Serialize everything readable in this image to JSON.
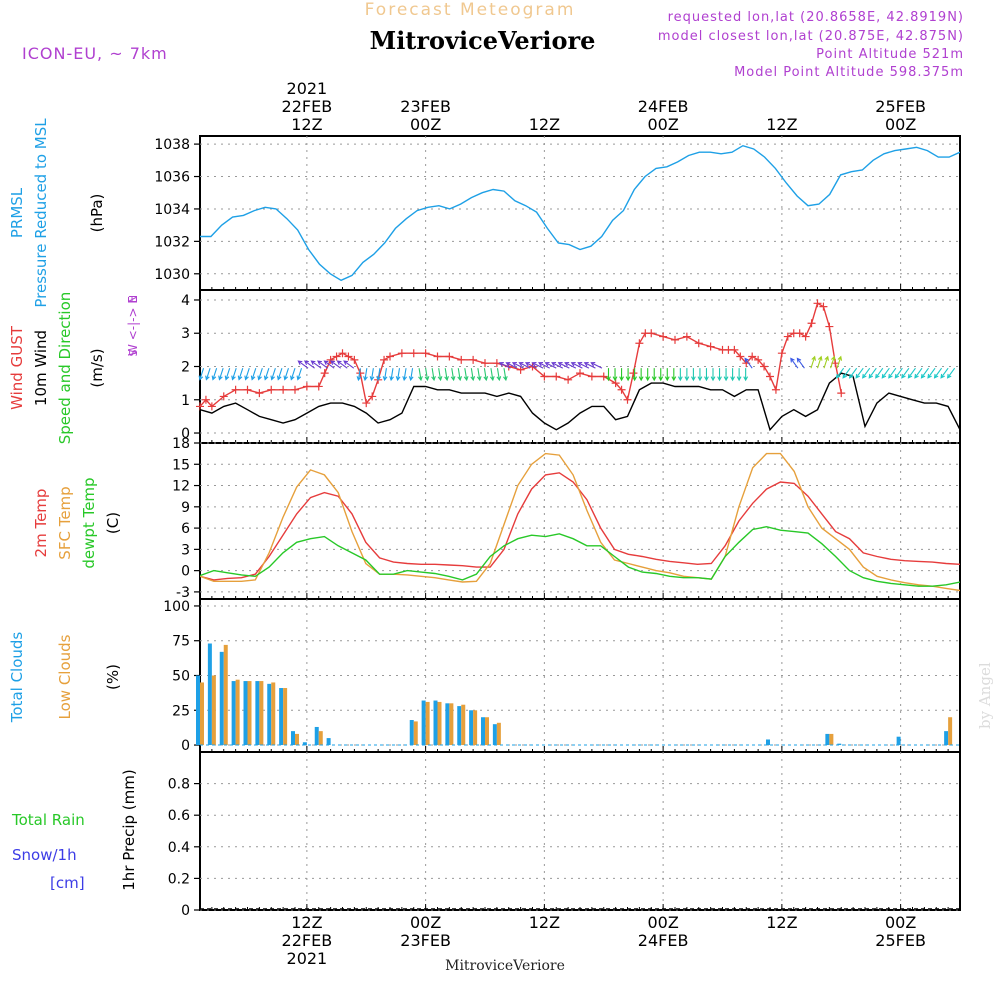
{
  "header": {
    "title": "Forecast Meteogram",
    "station": "MitroviceVeriore",
    "model": "ICON-EU, ~ 7km",
    "info": [
      "requested lon,lat (20.8658E, 42.8919N)",
      "model closest lon,lat (20.875E, 42.875N)",
      "Point Altitude 521m",
      "Model Point Altitude 598.375m"
    ]
  },
  "credit": "by Angel",
  "colors": {
    "pressure": "#1ea0e6",
    "gust": "#e63c3c",
    "wind": "#000000",
    "direction": "#28c828",
    "temp2m": "#e63c3c",
    "sfc": "#e6a03c",
    "dewpt": "#28c828",
    "total_clouds": "#1ea0e6",
    "low_clouds": "#e6a03c",
    "rain": "#28c828",
    "snow": "#3c3ce6",
    "compass": "#b040d0"
  },
  "time_axis": {
    "x_min": 0,
    "x_max": 64,
    "major": [
      {
        "t": 9,
        "top": [
          "2021",
          "22FEB",
          "12Z"
        ],
        "bottom": [
          "12Z",
          "22FEB",
          "2021"
        ]
      },
      {
        "t": 19,
        "top": [
          "23FEB",
          "00Z"
        ],
        "bottom": [
          "00Z",
          "23FEB"
        ]
      },
      {
        "t": 29,
        "top": [
          "12Z"
        ],
        "bottom": [
          "12Z"
        ]
      },
      {
        "t": 39,
        "top": [
          "24FEB",
          "00Z"
        ],
        "bottom": [
          "00Z",
          "24FEB"
        ]
      },
      {
        "t": 49,
        "top": [
          "12Z"
        ],
        "bottom": [
          "12Z"
        ]
      },
      {
        "t": 59,
        "top": [
          "25FEB",
          "00Z"
        ],
        "bottom": [
          "00Z",
          "25FEB"
        ]
      }
    ]
  },
  "panel_labels": {
    "pressure": {
      "lines": [
        "PRMSL",
        "Pressure Reduced to MSL"
      ],
      "unit": "(hPa)"
    },
    "wind": {
      "lines": [
        "Wind GUST",
        "10m Wind",
        "Speed and Direction"
      ],
      "unit": "(m/s)",
      "compass": [
        "N",
        "W <-|-> E",
        "S"
      ]
    },
    "temp": {
      "lines": [
        "2m Temp",
        "SFC Temp",
        "dewpt Temp"
      ],
      "unit": "(C)"
    },
    "clouds": {
      "lines": [
        "Total Clouds",
        "Low Clouds"
      ],
      "unit": "(%)"
    },
    "precip": {
      "lines": [
        "Total   Rain",
        "Snow/1h",
        "[cm]"
      ],
      "unit": "1hr Precip (mm)"
    }
  },
  "chart_data": [
    {
      "type": "line",
      "name": "pressure",
      "ylim": [
        1029,
        1038.5
      ],
      "yticks": [
        1030,
        1032,
        1034,
        1036,
        1038
      ],
      "series": [
        {
          "name": "PRMSL",
          "values": [
            1032.3,
            1032.3,
            1033.0,
            1033.5,
            1033.6,
            1033.9,
            1034.1,
            1034.0,
            1033.4,
            1032.7,
            1031.5,
            1030.6,
            1030.0,
            1029.6,
            1029.9,
            1030.7,
            1031.2,
            1031.9,
            1032.8,
            1033.4,
            1033.9,
            1034.1,
            1034.2,
            1034.0,
            1034.3,
            1034.7,
            1035.0,
            1035.2,
            1035.1,
            1034.5,
            1034.2,
            1033.8,
            1032.8,
            1031.9,
            1031.8,
            1031.5,
            1031.7,
            1032.3,
            1033.3,
            1033.9,
            1035.2,
            1036.0,
            1036.5,
            1036.6,
            1036.9,
            1037.3,
            1037.5,
            1037.5,
            1037.4,
            1037.5,
            1037.9,
            1037.7,
            1037.2,
            1036.5,
            1035.6,
            1034.8,
            1034.2,
            1034.3,
            1034.9,
            1036.1,
            1036.3,
            1036.4,
            1037.0,
            1037.4,
            1037.6,
            1037.7,
            1037.8,
            1037.6,
            1037.2,
            1037.2,
            1037.5
          ]
        }
      ]
    },
    {
      "type": "line",
      "name": "wind",
      "ylim": [
        -0.3,
        4.3
      ],
      "yticks": [
        0,
        1,
        2,
        3,
        4
      ],
      "series": [
        {
          "name": "Wind GUST",
          "values": [
            0.8,
            1.0,
            0.8,
            1.1,
            1.3,
            1.3,
            1.2,
            1.3,
            1.3,
            1.3,
            1.4,
            1.4,
            1.8,
            2.2,
            2.3,
            2.4,
            2.3,
            2.2,
            1.8,
            0.9,
            1.1,
            1.6,
            2.2,
            2.3,
            2.4,
            2.4,
            2.4,
            2.3,
            2.3,
            2.2,
            2.2,
            2.1,
            2.1,
            2.0,
            1.9,
            2.0,
            1.7,
            1.7,
            1.6,
            1.8,
            1.7,
            1.7,
            1.5,
            1.3,
            1.0,
            1.8,
            2.7,
            3.0,
            3.0,
            2.9,
            2.8,
            2.9,
            2.7,
            2.6,
            2.5,
            2.5,
            2.5,
            2.3,
            2.1,
            2.3,
            2.2,
            2.0,
            1.7,
            1.3,
            2.4,
            2.9,
            3.0,
            3.0,
            2.9,
            3.3,
            3.9,
            3.8,
            3.2,
            2.1,
            1.2
          ],
          "x": [
            0,
            0.5,
            1,
            2,
            3,
            4,
            5,
            6,
            7,
            8,
            9,
            10,
            10.5,
            11,
            11.5,
            12,
            12.5,
            13,
            13.5,
            14,
            14.5,
            15,
            15.5,
            16,
            17,
            18,
            19,
            20,
            21,
            22,
            23,
            24,
            25,
            26,
            27,
            28,
            29,
            30,
            31,
            32,
            33,
            34,
            35,
            35.5,
            36,
            36.5,
            37,
            37.5,
            38,
            39,
            40,
            41,
            42,
            43,
            44,
            44.5,
            45,
            45.5,
            46,
            46.5,
            47,
            47.5,
            48,
            48.5,
            49,
            49.5,
            50,
            50.5,
            51,
            51.5,
            52,
            52.5,
            53,
            53.5,
            54
          ]
        },
        {
          "name": "10m Wind",
          "values": [
            0.7,
            0.6,
            0.8,
            0.9,
            0.7,
            0.5,
            0.4,
            0.3,
            0.4,
            0.6,
            0.8,
            0.9,
            0.9,
            0.8,
            0.6,
            0.3,
            0.4,
            0.6,
            1.4,
            1.4,
            1.3,
            1.3,
            1.2,
            1.2,
            1.2,
            1.1,
            1.2,
            1.1,
            0.6,
            0.3,
            0.1,
            0.3,
            0.6,
            0.8,
            0.8,
            0.4,
            0.5,
            1.3,
            1.5,
            1.5,
            1.4,
            1.4,
            1.4,
            1.3,
            1.3,
            1.1,
            1.3,
            1.3,
            0.1,
            0.5,
            0.7,
            0.5,
            0.7,
            1.5,
            1.8,
            1.7,
            0.2,
            0.9,
            1.2,
            1.1,
            1.0,
            0.9,
            0.9,
            0.8,
            0.1
          ]
        },
        {
          "name": "Direction",
          "values": []
        }
      ]
    },
    {
      "type": "line",
      "name": "temp",
      "ylim": [
        -4,
        18
      ],
      "yticks": [
        -3,
        0,
        3,
        6,
        9,
        12,
        15,
        18
      ],
      "series": [
        {
          "name": "2m Temp",
          "values": [
            -0.8,
            -1.3,
            -1.1,
            -1.0,
            -0.5,
            2.0,
            5.0,
            8.0,
            10.3,
            11.0,
            10.5,
            8.0,
            4.0,
            1.8,
            1.2,
            1.0,
            0.9,
            0.9,
            0.8,
            0.7,
            0.5,
            0.5,
            3.0,
            8.0,
            11.5,
            13.5,
            13.8,
            12.5,
            10.0,
            6.0,
            3.0,
            2.3,
            2.0,
            1.6,
            1.3,
            1.1,
            0.9,
            1.0,
            3.5,
            7.0,
            9.5,
            11.5,
            12.5,
            12.3,
            10.5,
            8.0,
            5.5,
            4.5,
            2.5,
            2.0,
            1.6,
            1.4,
            1.3,
            1.2,
            1.0,
            0.9
          ]
        },
        {
          "name": "SFC Temp",
          "values": [
            -0.8,
            -1.5,
            -1.5,
            -1.5,
            -1.3,
            2.5,
            7.5,
            11.8,
            14.2,
            13.5,
            11.0,
            5.5,
            1.0,
            -0.5,
            -0.5,
            -0.6,
            -0.8,
            -1.0,
            -1.3,
            -1.6,
            -1.5,
            1.0,
            6.5,
            12.0,
            15.0,
            16.5,
            16.3,
            13.5,
            8.5,
            4.0,
            1.5,
            1.0,
            0.5,
            0.0,
            -0.3,
            -0.8,
            -1.0,
            -1.2,
            2.0,
            9.0,
            14.5,
            16.5,
            16.5,
            14.0,
            9.0,
            6.0,
            4.5,
            3.0,
            0.5,
            -0.8,
            -1.3,
            -1.7,
            -2.0,
            -2.2,
            -2.5,
            -2.8
          ]
        },
        {
          "name": "dewpt Temp",
          "values": [
            -0.7,
            0.0,
            -0.3,
            -0.6,
            -0.8,
            0.5,
            2.5,
            4.0,
            4.5,
            4.8,
            3.5,
            2.5,
            1.5,
            -0.5,
            -0.5,
            0.0,
            -0.2,
            -0.4,
            -0.8,
            -1.3,
            -0.5,
            2.0,
            3.5,
            4.5,
            5.0,
            4.8,
            5.2,
            4.5,
            3.5,
            3.5,
            2.0,
            0.5,
            -0.2,
            -0.4,
            -0.8,
            -1.0,
            -1.0,
            -1.2,
            2.0,
            4.0,
            5.8,
            6.2,
            5.7,
            5.5,
            5.3,
            3.8,
            2.0,
            0.0,
            -1.0,
            -1.5,
            -1.8,
            -2.0,
            -2.2,
            -2.2,
            -2.0,
            -1.6
          ]
        }
      ]
    },
    {
      "type": "bar",
      "name": "clouds",
      "ylim": [
        -5,
        105
      ],
      "yticks": [
        0,
        25,
        50,
        75,
        100
      ],
      "categories_x": [
        0,
        1,
        2,
        3,
        4,
        5,
        6,
        7,
        8,
        9,
        10,
        11,
        12,
        13,
        14,
        15,
        16,
        17,
        18,
        19,
        20,
        21,
        22,
        23,
        24,
        25,
        26,
        27,
        28,
        29,
        30,
        31,
        32,
        33,
        34,
        35,
        36,
        37,
        38,
        39,
        40,
        41,
        42,
        43,
        44,
        45,
        46,
        47,
        48,
        49,
        50,
        51,
        52,
        53,
        54,
        55,
        56,
        57,
        58,
        59,
        60,
        61,
        62,
        63
      ],
      "series": [
        {
          "name": "Total Clouds",
          "values": [
            50,
            73,
            67,
            46,
            46,
            46,
            44,
            41,
            10,
            2,
            13,
            5,
            0,
            0,
            0,
            0,
            0,
            0,
            18,
            32,
            32,
            30,
            28,
            25,
            20,
            15,
            0,
            0,
            0,
            0,
            0,
            0,
            0,
            0,
            0,
            0,
            0,
            0,
            0,
            0,
            0,
            0,
            0,
            0,
            0,
            0,
            0,
            0,
            4,
            0,
            0,
            0,
            0,
            8,
            1,
            0,
            0,
            0,
            0,
            6,
            0,
            0,
            0,
            10
          ]
        },
        {
          "name": "Low Clouds",
          "values": [
            45,
            50,
            72,
            47,
            46,
            46,
            45,
            41,
            8,
            0,
            10,
            0,
            0,
            0,
            0,
            0,
            0,
            0,
            17,
            31,
            31,
            30,
            29,
            25,
            20,
            16,
            0,
            0,
            0,
            0,
            0,
            0,
            0,
            0,
            0,
            0,
            0,
            0,
            0,
            0,
            0,
            0,
            0,
            0,
            0,
            0,
            0,
            0,
            0,
            0,
            0,
            0,
            0,
            8,
            0,
            0,
            0,
            0,
            0,
            0,
            0,
            0,
            0,
            20
          ]
        }
      ]
    },
    {
      "type": "bar",
      "name": "precip",
      "ylim": [
        0,
        1.0
      ],
      "yticks": [
        0,
        0.2,
        0.4,
        0.6,
        0.8
      ],
      "series": [
        {
          "name": "Total Rain",
          "values": []
        },
        {
          "name": "Snow/1h",
          "values": []
        }
      ]
    }
  ]
}
